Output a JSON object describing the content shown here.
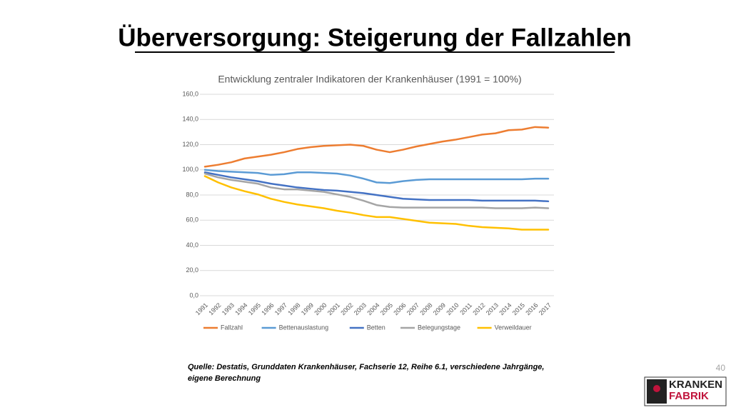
{
  "slide": {
    "title": "Überversorgung: Steigerung der Fallzahlen",
    "source": "Quelle: Destatis, Grunddaten Krankenhäuser, Fachserie 12, Reihe 6.1, verschiedene Jahrgänge,",
    "source_line2": "eigene Berechnung",
    "page_number": "40",
    "logo": [
      "KRANKEN",
      "FABRIK"
    ]
  },
  "chart_data": {
    "type": "line",
    "title": "Entwicklung zentraler Indikatoren der Krankenhäuser (1991 = 100%)",
    "categories": [
      "1991",
      "1992",
      "1993",
      "1994",
      "1995",
      "1996",
      "1997",
      "1998",
      "1999",
      "2000",
      "2001",
      "2002",
      "2003",
      "2004",
      "2005",
      "2006",
      "2007",
      "2008",
      "2009",
      "2010",
      "2011",
      "2012",
      "2013",
      "2014",
      "2015",
      "2016",
      "2017"
    ],
    "series": [
      {
        "name": "Fallzahl",
        "color": "#ed7d31",
        "values": [
          102.5,
          104,
          106,
          109,
          110.5,
          112,
          114,
          116.5,
          118,
          119,
          119.5,
          120,
          119,
          116,
          114,
          116,
          118.5,
          120.5,
          122.5,
          124,
          126,
          128,
          129,
          131.5,
          132,
          134,
          133.5
        ]
      },
      {
        "name": "Bettenauslastung",
        "color": "#5b9bd5",
        "values": [
          100,
          99,
          98.5,
          98,
          97.5,
          96,
          96.5,
          98,
          98,
          97.5,
          97,
          95.5,
          93,
          90,
          89.5,
          91,
          92,
          92.5,
          92.5,
          92.5,
          92.5,
          92.5,
          92.5,
          92.5,
          92.5,
          93,
          93
        ]
      },
      {
        "name": "Betten",
        "color": "#4472c4",
        "values": [
          98,
          96,
          94,
          92.5,
          91,
          89,
          87.5,
          86,
          85,
          84,
          83.5,
          82.5,
          81.5,
          80,
          78.5,
          77,
          76.5,
          76,
          76,
          76,
          76,
          75.5,
          75.5,
          75.5,
          75.5,
          75.5,
          75
        ]
      },
      {
        "name": "Belegungstage",
        "color": "#a5a5a5",
        "values": [
          97,
          94,
          92,
          90.5,
          89,
          86,
          84.5,
          84.5,
          83.5,
          82.5,
          80.5,
          78.5,
          75.5,
          72,
          70.5,
          70,
          70,
          70,
          70,
          70,
          70,
          70,
          69.5,
          69.5,
          69.5,
          70,
          69.5
        ]
      },
      {
        "name": "Verweildauer",
        "color": "#ffc000",
        "values": [
          95,
          90,
          86,
          83,
          80.5,
          77,
          74.5,
          72.5,
          71,
          69.5,
          67.5,
          66,
          64,
          62.5,
          62.5,
          61,
          59.5,
          58,
          57.5,
          57,
          55.5,
          54.5,
          54,
          53.5,
          52.5,
          52.5,
          52.5
        ]
      }
    ],
    "ylim": [
      0,
      160
    ],
    "yticks": [
      {
        "value": 0,
        "label": "0,0"
      },
      {
        "value": 20,
        "label": "20,0"
      },
      {
        "value": 40,
        "label": "40,0"
      },
      {
        "value": 60,
        "label": "60,0"
      },
      {
        "value": 80,
        "label": "80,0"
      },
      {
        "value": 100,
        "label": "100,0"
      },
      {
        "value": 120,
        "label": "120,0"
      },
      {
        "value": 140,
        "label": "140,0"
      },
      {
        "value": 160,
        "label": "160,0"
      }
    ],
    "grid": true,
    "legend": "bottom"
  }
}
